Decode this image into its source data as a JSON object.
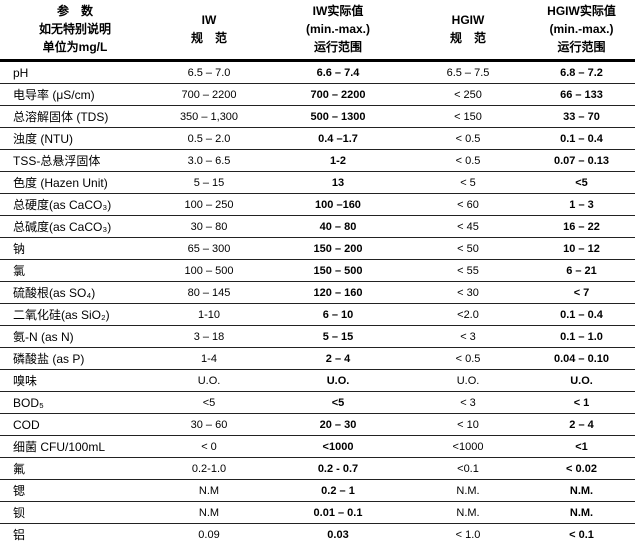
{
  "colors": {
    "text": "#000000",
    "rule_thin": "#222222",
    "rule_thick": "#000000",
    "background": "#ffffff"
  },
  "header": {
    "param": [
      "参　数",
      "如无特别说明",
      "单位为mg/L"
    ],
    "iw_spec": [
      "IW",
      "规　范"
    ],
    "iw_actual": [
      "IW实际值",
      "(min.-max.)",
      "运行范围"
    ],
    "hgiw_spec": [
      "HGIW",
      "规　范"
    ],
    "hgiw_actual": [
      "HGIW实际值",
      "(min.-max.)",
      "运行范围"
    ]
  },
  "rows": [
    {
      "param": "pH",
      "iw_spec": "6.5 – 7.0",
      "iw_actual": "6.6 – 7.4",
      "hgiw_spec": "6.5 – 7.5",
      "hgiw_actual": "6.8 – 7.2"
    },
    {
      "param": "电导率 (μS/cm)",
      "iw_spec": "700 – 2200",
      "iw_actual": "700 – 2200",
      "hgiw_spec": "< 250",
      "hgiw_actual": "66 – 133"
    },
    {
      "param": "总溶解固体 (TDS)",
      "iw_spec": "350 – 1,300",
      "iw_actual": "500 – 1300",
      "hgiw_spec": "< 150",
      "hgiw_actual": "33 – 70"
    },
    {
      "param": "浊度 (NTU)",
      "iw_spec": "0.5 – 2.0",
      "iw_actual": "0.4 –1.7",
      "hgiw_spec": "< 0.5",
      "hgiw_actual": "0.1 – 0.4"
    },
    {
      "param": "TSS-总悬浮固体",
      "iw_spec": "3.0 – 6.5",
      "iw_actual": "1-2",
      "hgiw_spec": "< 0.5",
      "hgiw_actual": "0.07 – 0.13"
    },
    {
      "param": "色度 (Hazen Unit)",
      "iw_spec": "5 – 15",
      "iw_actual": "13",
      "hgiw_spec": "< 5",
      "hgiw_actual": "<5"
    },
    {
      "param": "总硬度(as CaCO₃)",
      "iw_spec": "100 – 250",
      "iw_actual": "100 –160",
      "hgiw_spec": "< 60",
      "hgiw_actual": "1 – 3"
    },
    {
      "param": "总碱度(as CaCO₃)",
      "iw_spec": "30 – 80",
      "iw_actual": "40 – 80",
      "hgiw_spec": "< 45",
      "hgiw_actual": "16 – 22"
    },
    {
      "param": "钠",
      "iw_spec": "65 – 300",
      "iw_actual": "150 – 200",
      "hgiw_spec": "< 50",
      "hgiw_actual": "10 – 12"
    },
    {
      "param": "氯",
      "iw_spec": "100 – 500",
      "iw_actual": "150 – 500",
      "hgiw_spec": "< 55",
      "hgiw_actual": "6 – 21"
    },
    {
      "param": "硫酸根(as SO₄)",
      "iw_spec": "80 – 145",
      "iw_actual": "120 – 160",
      "hgiw_spec": "< 30",
      "hgiw_actual": "< 7"
    },
    {
      "param": "二氧化硅(as SiO₂)",
      "iw_spec": "1-10",
      "iw_actual": "6 – 10",
      "hgiw_spec": "<2.0",
      "hgiw_actual": "0.1 – 0.4"
    },
    {
      "param": "氨-N (as N)",
      "iw_spec": "3 – 18",
      "iw_actual": "5 – 15",
      "hgiw_spec": "< 3",
      "hgiw_actual": "0.1 – 1.0"
    },
    {
      "param": "磷酸盐 (as P)",
      "iw_spec": "1-4",
      "iw_actual": "2 – 4",
      "hgiw_spec": "< 0.5",
      "hgiw_actual": "0.04 – 0.10"
    },
    {
      "param": "嗅味",
      "iw_spec": "U.O.",
      "iw_actual": "U.O.",
      "hgiw_spec": "U.O.",
      "hgiw_actual": "U.O."
    },
    {
      "param": "BOD₅",
      "iw_spec": "<5",
      "iw_actual": "<5",
      "hgiw_spec": "< 3",
      "hgiw_actual": "< 1"
    },
    {
      "param": "COD",
      "iw_spec": "30 – 60",
      "iw_actual": "20 – 30",
      "hgiw_spec": "< 10",
      "hgiw_actual": "2 – 4"
    },
    {
      "param": "细菌 CFU/100mL",
      "iw_spec": "< 0",
      "iw_actual": "<1000",
      "hgiw_spec": "<1000",
      "hgiw_actual": "<1"
    },
    {
      "param": "氟",
      "iw_spec": "0.2-1.0",
      "iw_actual": "0.2 - 0.7",
      "hgiw_spec": "<0.1",
      "hgiw_actual": "< 0.02"
    },
    {
      "param": "锶",
      "iw_spec": "N.M",
      "iw_actual": "0.2 – 1",
      "hgiw_spec": "N.M.",
      "hgiw_actual": "N.M."
    },
    {
      "param": "钡",
      "iw_spec": "N.M",
      "iw_actual": "0.01 – 0.1",
      "hgiw_spec": "N.M.",
      "hgiw_actual": "N.M."
    },
    {
      "param": "铝",
      "iw_spec": "0.09",
      "iw_actual": "0.03",
      "hgiw_spec": "< 1.0",
      "hgiw_actual": "< 0.1"
    }
  ]
}
